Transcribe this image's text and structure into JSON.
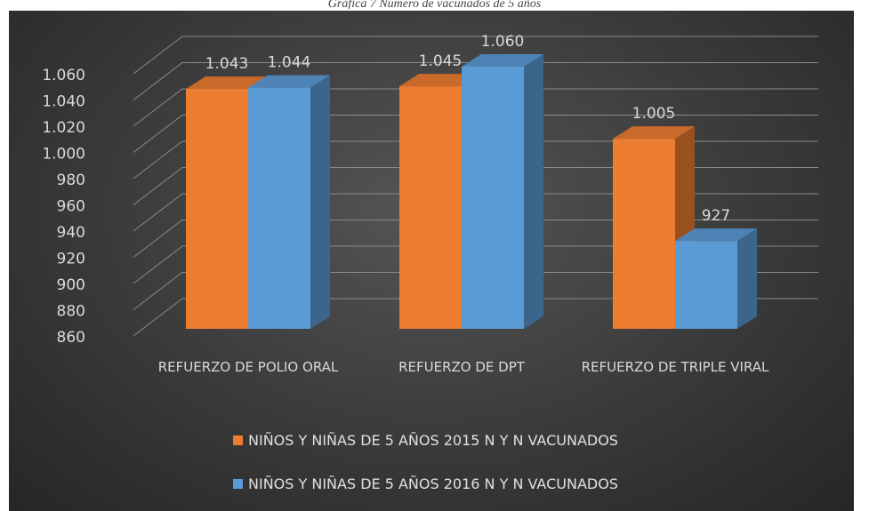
{
  "chart_data": {
    "type": "bar3d",
    "title": "Gráfica 7 Número de vacunados de 5 años",
    "categories": [
      "REFUERZO DE POLIO ORAL",
      "REFUERZO DE DPT",
      "REFUERZO DE TRIPLE VIRAL"
    ],
    "series": [
      {
        "name": "NIÑOS Y NIÑAS DE 5 AÑOS 2015 N Y N VACUNADOS",
        "color": "#ed7d31",
        "values": [
          1043,
          1045,
          1005
        ],
        "value_labels": [
          "1.043",
          "1.045",
          "1.005"
        ]
      },
      {
        "name": "NIÑOS Y NIÑAS DE 5 AÑOS 2016 N Y N VACUNADOS",
        "color": "#5b9bd5",
        "values": [
          1044,
          1060,
          927
        ],
        "value_labels": [
          "1.044",
          "1.060",
          "927"
        ]
      }
    ],
    "ylim": [
      860,
      1060
    ],
    "yticks": [
      860,
      880,
      900,
      920,
      940,
      960,
      980,
      {
        "value": 1000,
        "label": "1.000"
      },
      {
        "value": 1020,
        "label": "1.020"
      },
      {
        "value": 1040,
        "label": "1.040"
      },
      {
        "value": 1060,
        "label": "1.060"
      }
    ],
    "grid": true,
    "legend": "bottom"
  }
}
